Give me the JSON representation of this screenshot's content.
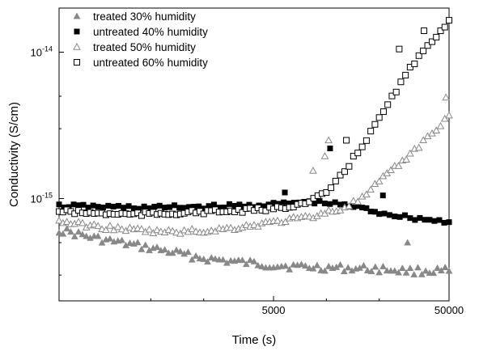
{
  "chart_data": {
    "type": "scatter",
    "title": "",
    "xlabel": "Time (s)",
    "ylabel": "Conductivity (S/cm)",
    "xscale": "log",
    "yscale": "log",
    "xlim": [
      300,
      50000
    ],
    "ylim": [
      2e-16,
      2e-14
    ],
    "x_ticks": [
      {
        "value": 5000,
        "label": "5000"
      },
      {
        "value": 50000,
        "label": "50000"
      }
    ],
    "y_ticks": [
      {
        "value": 1e-15,
        "base": "10",
        "exp": "-15"
      },
      {
        "value": 1e-14,
        "base": "10",
        "exp": "-14"
      }
    ],
    "legend": "top-left",
    "grid": false,
    "series": [
      {
        "name": "treated    30%  humidity",
        "marker": "triangle-filled",
        "color": "#888888",
        "points": [
          [
            300,
            6.1e-16
          ],
          [
            500,
            5.3e-16
          ],
          [
            800,
            4.8e-16
          ],
          [
            1200,
            4.4e-16
          ],
          [
            2000,
            3.9e-16
          ],
          [
            3000,
            3.7e-16
          ],
          [
            5000,
            3.5e-16
          ],
          [
            8000,
            3.4e-16
          ],
          [
            12000,
            3.35e-16
          ],
          [
            20000,
            3.3e-16
          ],
          [
            30000,
            3.2e-16
          ],
          [
            50000,
            3.2e-16
          ]
        ],
        "outliers": [
          [
            29000,
            5e-16
          ]
        ]
      },
      {
        "name": "untreated 40% humidity",
        "marker": "square-filled",
        "color": "#000000",
        "points": [
          [
            300,
            8.9e-16
          ],
          [
            500,
            8.8e-16
          ],
          [
            800,
            8.7e-16
          ],
          [
            1200,
            8.7e-16
          ],
          [
            2000,
            8.8e-16
          ],
          [
            3000,
            8.9e-16
          ],
          [
            5000,
            9.1e-16
          ],
          [
            8000,
            9.5e-16
          ],
          [
            12000,
            9.1e-16
          ],
          [
            16000,
            8.6e-16
          ],
          [
            20000,
            8e-16
          ],
          [
            30000,
            7.4e-16
          ],
          [
            50000,
            6.9e-16
          ]
        ],
        "outliers": [
          [
            5800,
            1.1e-15
          ],
          [
            10500,
            2.2e-15
          ],
          [
            21000,
            1.05e-15
          ]
        ]
      },
      {
        "name": "treated    50% humidity",
        "marker": "triangle-open",
        "color": "#888888",
        "points": [
          [
            300,
            7e-16
          ],
          [
            500,
            6.4e-16
          ],
          [
            800,
            6.1e-16
          ],
          [
            1200,
            5.9e-16
          ],
          [
            2000,
            6e-16
          ],
          [
            3000,
            6.3e-16
          ],
          [
            5000,
            6.9e-16
          ],
          [
            8000,
            7.5e-16
          ],
          [
            12000,
            8.5e-16
          ],
          [
            16000,
            1e-15
          ],
          [
            20000,
            1.3e-15
          ],
          [
            30000,
            2e-15
          ],
          [
            40000,
            2.8e-15
          ],
          [
            50000,
            3.7e-15
          ]
        ],
        "outliers": [
          [
            9800,
            1.95e-15
          ],
          [
            10300,
            2.5e-15
          ],
          [
            8400,
            1.55e-15
          ],
          [
            48000,
            4.9e-15
          ]
        ]
      },
      {
        "name": "untreated 60% humidity",
        "marker": "square-open",
        "color": "#000000",
        "points": [
          [
            300,
            8.2e-16
          ],
          [
            500,
            7.9e-16
          ],
          [
            800,
            7.8e-16
          ],
          [
            1200,
            7.9e-16
          ],
          [
            2000,
            8.1e-16
          ],
          [
            3000,
            8.2e-16
          ],
          [
            5000,
            8.5e-16
          ],
          [
            8000,
            9.4e-16
          ],
          [
            10000,
            1.1e-15
          ],
          [
            12000,
            1.4e-15
          ],
          [
            16000,
            2.3e-15
          ],
          [
            20000,
            3.5e-15
          ],
          [
            25000,
            5.5e-15
          ],
          [
            30000,
            7.7e-15
          ],
          [
            40000,
            1.2e-14
          ],
          [
            50000,
            1.65e-14
          ]
        ],
        "outliers": [
          [
            13000,
            2.5e-15
          ],
          [
            26000,
            1.05e-14
          ],
          [
            36000,
            1.4e-14
          ]
        ]
      }
    ]
  }
}
